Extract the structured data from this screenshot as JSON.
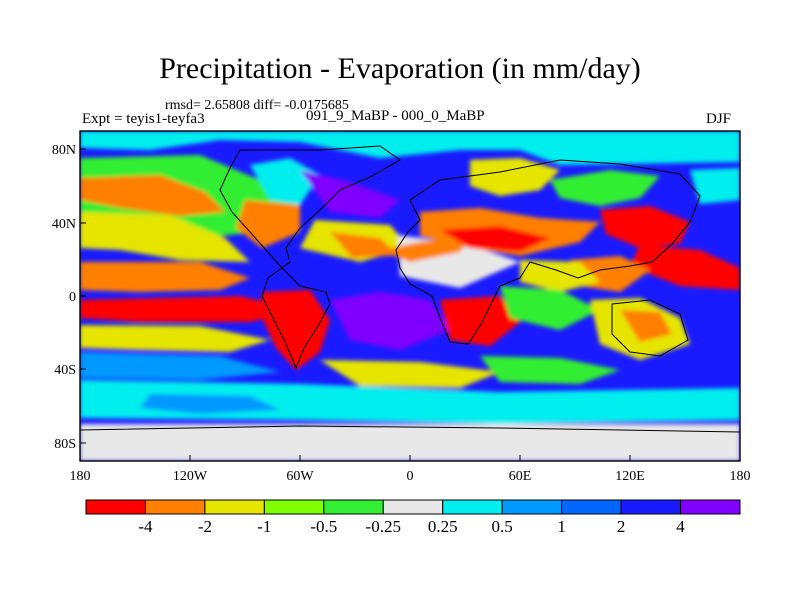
{
  "title": "Precipitation - Evaporation (in mm/day)",
  "stats": "rmsd= 2.65808 diff= -0.0175685",
  "experiment": "Expt = teyis1-teyfa3",
  "comparison": "091_9_MaBP - 000_0_MaBP",
  "season": "DJF",
  "lon_ticks": [
    "180",
    "120W",
    "60W",
    "0",
    "60E",
    "120E",
    "180"
  ],
  "lat_ticks": [
    "80N",
    "40N",
    "0",
    "40S",
    "80S"
  ],
  "colorbar": {
    "labels": [
      "-4",
      "-2",
      "-1",
      "-0.5",
      "-0.25",
      "0.25",
      "0.5",
      "1",
      "2",
      "4"
    ],
    "colors": [
      "#ff0000",
      "#ff7f00",
      "#e5e500",
      "#7fff00",
      "#33ee33",
      "#e8e8e8",
      "#00eeee",
      "#0099ff",
      "#0066ff",
      "#1a1aff",
      "#8000ff"
    ]
  }
}
